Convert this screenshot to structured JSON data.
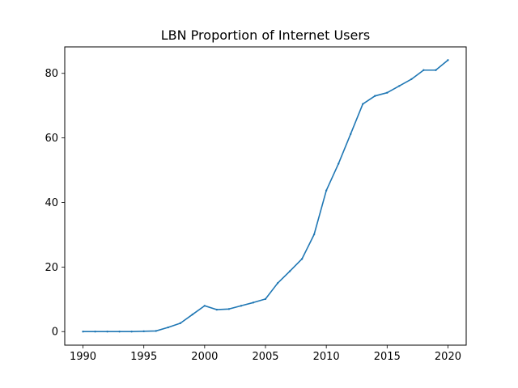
{
  "chart_data": {
    "type": "line",
    "title": "LBN Proportion of Internet Users",
    "xlabel": "",
    "ylabel": "",
    "xlim": [
      1988.5,
      2021.5
    ],
    "ylim": [
      -4.2,
      88.2
    ],
    "xticks": [
      1990,
      1995,
      2000,
      2005,
      2010,
      2015,
      2020
    ],
    "yticks": [
      0,
      20,
      40,
      60,
      80
    ],
    "grid": false,
    "series": [
      {
        "color": "#1f77b4",
        "x": [
          1990,
          1991,
          1992,
          1993,
          1994,
          1995,
          1996,
          1997,
          1998,
          1999,
          2000,
          2001,
          2002,
          2003,
          2004,
          2005,
          2006,
          2007,
          2008,
          2009,
          2010,
          2011,
          2012,
          2013,
          2014,
          2015,
          2016,
          2017,
          2018,
          2019,
          2020
        ],
        "y": [
          0,
          0,
          0,
          0,
          0,
          0.1,
          0.2,
          1.3,
          2.6,
          5.3,
          8.0,
          6.8,
          7.0,
          8.0,
          9.0,
          10.1,
          15.0,
          18.7,
          22.5,
          30.1,
          43.7,
          52.0,
          61.2,
          70.5,
          73.0,
          74.0,
          76.1,
          78.2,
          81.0,
          81.0,
          84.1
        ]
      }
    ]
  }
}
